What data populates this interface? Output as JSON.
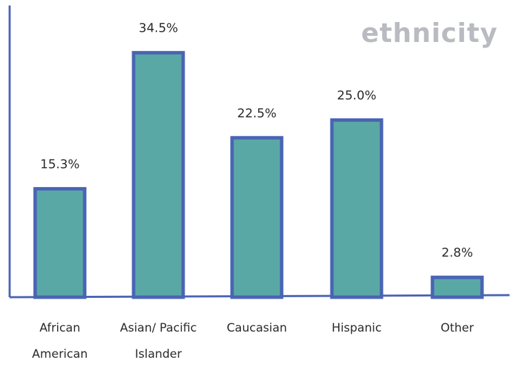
{
  "chart_data": {
    "type": "bar",
    "title": "ethnicity",
    "categories": [
      "African American",
      "Asian/ Pacific Islander",
      "Caucasian",
      "Hispanic",
      "Other"
    ],
    "category_lines": [
      [
        "African",
        "American"
      ],
      [
        "Asian/ Pacific",
        "Islander"
      ],
      [
        "Caucasian"
      ],
      [
        "Hispanic"
      ],
      [
        "Other"
      ]
    ],
    "values": [
      15.3,
      34.5,
      22.5,
      25.0,
      2.8
    ],
    "data_labels": [
      "15.3%",
      "34.5%",
      "22.5%",
      "25.0%",
      "2.8%"
    ],
    "unit": "%",
    "xlabel": "",
    "ylabel": "",
    "ylim": [
      0,
      40
    ],
    "grid": false,
    "legend": "none",
    "colors": {
      "bar_fill": "#5aa8a6",
      "bar_stroke": "#4a64b4",
      "axis": "#4a64b4",
      "title": "#b9bbc1",
      "text": "#2a2a2a"
    }
  }
}
